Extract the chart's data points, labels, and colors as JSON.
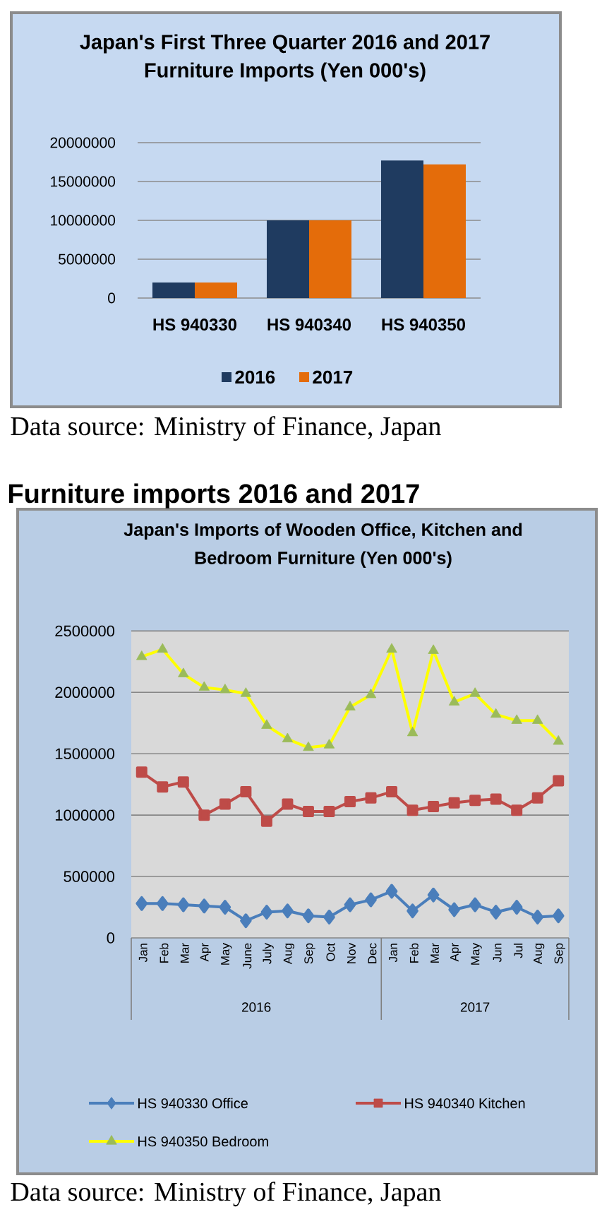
{
  "chart_data": [
    {
      "type": "bar",
      "title": "Japan's First Three Quarter 2016 and 2017 Furniture Imports (Yen 000's)",
      "categories": [
        "HS 940330",
        "HS 940340",
        "HS 940350"
      ],
      "series": [
        {
          "name": "2016",
          "color": "#1f3b60",
          "values": [
            2000000,
            10000000,
            17700000
          ]
        },
        {
          "name": "2017",
          "color": "#e46c0a",
          "values": [
            2000000,
            10000000,
            17200000
          ]
        }
      ],
      "ylim": [
        0,
        20000000
      ],
      "yticks": [
        0,
        5000000,
        10000000,
        15000000,
        20000000
      ],
      "grid": "y",
      "legend": "bottom",
      "annotations": [
        "Data source: Ministry of Finance, Japan"
      ]
    },
    {
      "type": "line",
      "title": "Japan's Imports of Wooden Office, Kitchen and Bedroom Furniture (Yen 000's)",
      "categories": [
        "Jan",
        "Feb",
        "Mar",
        "Apr",
        "May",
        "June",
        "July",
        "Aug",
        "Sep",
        "Oct",
        "Nov",
        "Dec",
        "Jan",
        "Feb",
        "Mar",
        "Apr",
        "May",
        "Jun",
        "Jul",
        "Aug",
        "Sep"
      ],
      "series": [
        {
          "name": "HS 940330 Office",
          "color": "#4a7ebb",
          "marker": "diamond",
          "values": [
            280000,
            280000,
            270000,
            260000,
            250000,
            140000,
            210000,
            220000,
            180000,
            170000,
            270000,
            310000,
            380000,
            220000,
            350000,
            230000,
            270000,
            210000,
            250000,
            170000,
            180000
          ]
        },
        {
          "name": "HS 940340 Kitchen",
          "color": "#be4b48",
          "marker": "square",
          "values": [
            1350000,
            1230000,
            1270000,
            1000000,
            1090000,
            1190000,
            950000,
            1090000,
            1030000,
            1030000,
            1110000,
            1140000,
            1190000,
            1040000,
            1070000,
            1100000,
            1120000,
            1130000,
            1040000,
            1140000,
            1280000
          ]
        },
        {
          "name": "HS 940350 Bedroom",
          "color": "#ffff00",
          "marker": "triangle",
          "values": [
            2290000,
            2350000,
            2150000,
            2040000,
            2020000,
            1990000,
            1730000,
            1620000,
            1550000,
            1570000,
            1880000,
            1980000,
            2350000,
            1670000,
            2340000,
            1920000,
            1990000,
            1820000,
            1770000,
            1770000,
            1600000
          ],
          "colors": [
            "#9bbb59",
            "#9bbb59",
            "#9bbb59",
            "#9bbb59",
            "#9bbb59",
            "#9bbb59",
            "#9bbb59",
            "#9bbb59",
            "#9bbb59",
            "#9bbb59",
            "#9bbb59",
            "#9bbb59",
            "#9bbb59",
            "#9bbb59",
            "#9bbb59",
            "#9bbb59",
            "#9bbb59",
            "#9bbb59",
            "#9bbb59",
            "#9bbb59",
            "#9bbb59"
          ]
        }
      ],
      "ylim": [
        0,
        2500000
      ],
      "yticks": [
        0,
        500000,
        1000000,
        1500000,
        2000000,
        2500000
      ],
      "grid": "y",
      "legend": "bottom",
      "annotations": [
        "Furniture imports 2016 and 2017",
        "2016",
        "2017",
        "Data source: Ministry of Finance, Japan"
      ]
    }
  ]
}
